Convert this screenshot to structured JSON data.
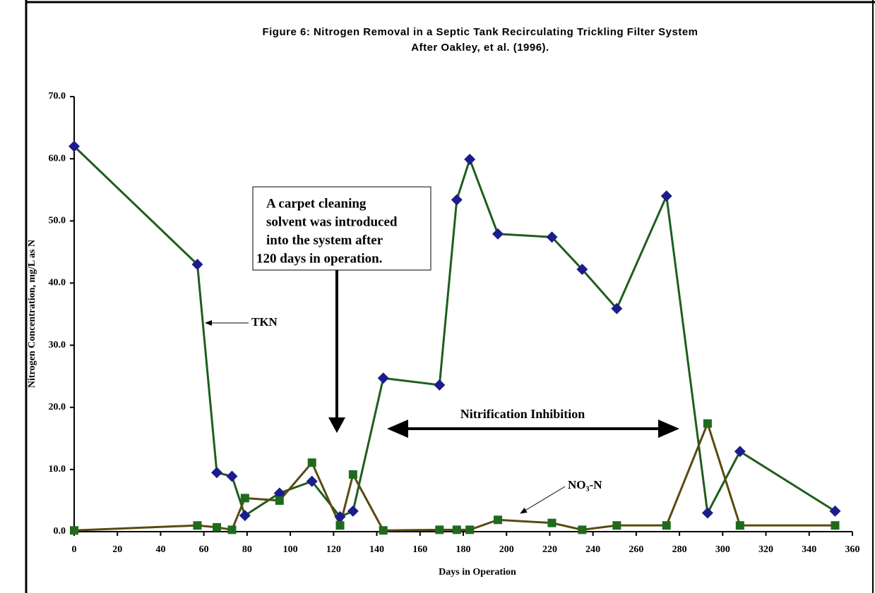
{
  "chart_data": {
    "type": "line",
    "title": "Figure 6:  Nitrogen Removal in a Septic Tank Recirculating Trickling Filter System",
    "subtitle": "After Oakley, et al. (1996).",
    "x_label": "Days in Operation",
    "y_label": "Nitrogen Concentration, mg/L as N",
    "xlim": [
      0,
      360
    ],
    "xticks": [
      0,
      20,
      40,
      60,
      80,
      100,
      120,
      140,
      160,
      180,
      200,
      220,
      240,
      260,
      280,
      300,
      320,
      340,
      360
    ],
    "ylim": [
      0,
      70
    ],
    "yticks": [
      {
        "value": 0,
        "label": "0.0"
      },
      {
        "value": 10,
        "label": "10.0"
      },
      {
        "value": 20,
        "label": "20.0"
      },
      {
        "value": 30,
        "label": "30.0"
      },
      {
        "value": 40,
        "label": "40.0"
      },
      {
        "value": 50,
        "label": "50.0"
      },
      {
        "value": 60,
        "label": "60.0"
      },
      {
        "value": 70,
        "label": "70.0"
      }
    ],
    "x": [
      0,
      57,
      66,
      73,
      79,
      95,
      110,
      123,
      129,
      143,
      169,
      177,
      183,
      196,
      221,
      235,
      251,
      274,
      293,
      308,
      352
    ],
    "series": [
      {
        "name": "TKN",
        "color": "#1e5e1e",
        "marker_color": "#1c1c8c",
        "marker": "diamond",
        "values": [
          62,
          43,
          9.5,
          8.9,
          2.6,
          6.2,
          8.1,
          2.4,
          3.3,
          24.7,
          23.6,
          53.4,
          59.9,
          47.9,
          47.4,
          42.2,
          35.9,
          54,
          3.0,
          12.9,
          3.3
        ]
      },
      {
        "name": "NO₃-N",
        "color": "#5a4a10",
        "marker_color": "#1e6b1e",
        "marker": "square",
        "values": [
          0.2,
          1.0,
          0.7,
          0.3,
          5.4,
          5.0,
          11.1,
          1.0,
          9.2,
          0.2,
          0.3,
          0.3,
          0.3,
          1.9,
          1.4,
          0.3,
          1.0,
          1.0,
          17.4,
          1.0,
          1.0
        ]
      }
    ],
    "annotations": [
      "A carpet cleaning",
      "solvent was introduced",
      "into the system after",
      "120 days in operation.",
      "Nitrification Inhibition"
    ]
  }
}
